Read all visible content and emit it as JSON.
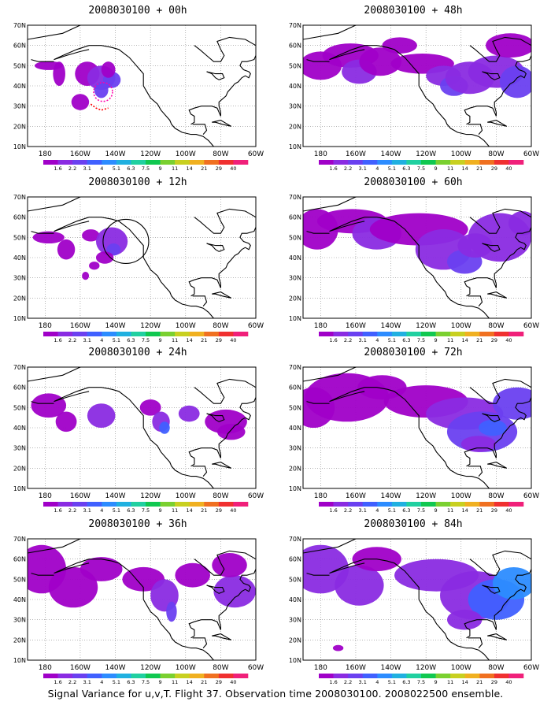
{
  "colorbar": {
    "labels": [
      "1.6",
      "2.2",
      "3.1",
      "4",
      "5.1",
      "6.3",
      "7.5",
      "9",
      "11",
      "14",
      "21",
      "29",
      "40"
    ],
    "colors": [
      "#a000c8",
      "#8a2be2",
      "#6a40f0",
      "#4060ff",
      "#2c8cff",
      "#20b0e0",
      "#20d0a0",
      "#10c850",
      "#7ad030",
      "#c8d020",
      "#f0b020",
      "#f07020",
      "#f03030",
      "#f0207a"
    ]
  },
  "axes": {
    "lat_labels": [
      "70N",
      "60N",
      "50N",
      "40N",
      "30N",
      "20N",
      "10N"
    ],
    "lon_labels": [
      "180",
      "160W",
      "140W",
      "120W",
      "100W",
      "80W",
      "60W"
    ]
  },
  "panels": [
    {
      "title": "2008030100  +  00h"
    },
    {
      "title": "2008030100  +  48h"
    },
    {
      "title": "2008030100  +  12h"
    },
    {
      "title": "2008030100  +  60h"
    },
    {
      "title": "2008030100  +  24h"
    },
    {
      "title": "2008030100  +  72h"
    },
    {
      "title": "2008030100  +  36h"
    },
    {
      "title": "2008030100  +  84h"
    }
  ],
  "caption": "Signal Variance for u,v,T.  Flight 37.  Observation time 2008030100.  2008022500 ensemble."
}
